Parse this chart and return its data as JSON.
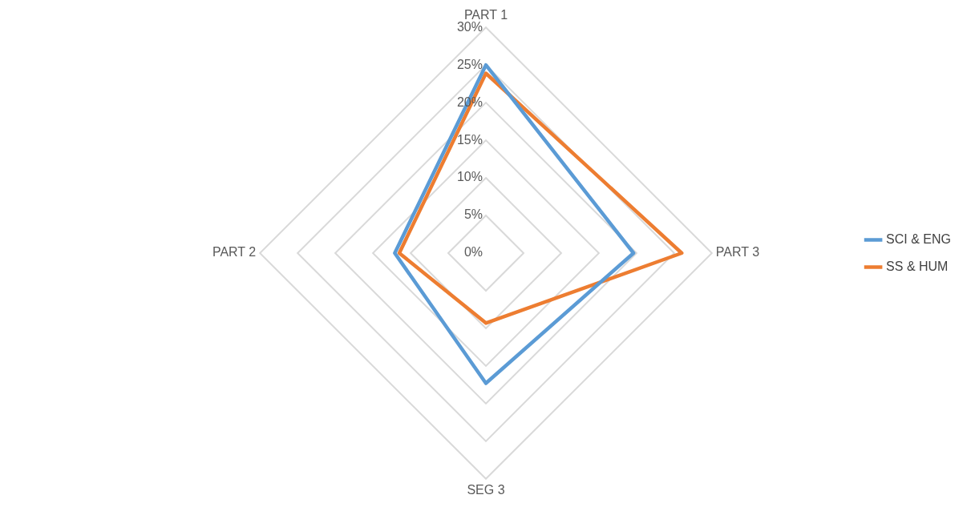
{
  "chart_data": {
    "type": "radar",
    "categories": [
      "PART 1",
      "PART 3",
      "SEG 3",
      "PART 2"
    ],
    "series": [
      {
        "name": "SCI & ENG",
        "color": "#5b9bd5",
        "values": [
          25,
          19.6,
          17.3,
          12.1
        ]
      },
      {
        "name": "SS & HUM",
        "color": "#ed7d31",
        "values": [
          23.9,
          26,
          9.3,
          11.5
        ]
      }
    ],
    "ylim": [
      0,
      30
    ],
    "yticks": [
      {
        "value": 0,
        "label": "0%"
      },
      {
        "value": 5,
        "label": "5%"
      },
      {
        "value": 10,
        "label": "10%"
      },
      {
        "value": 15,
        "label": "15%"
      },
      {
        "value": 20,
        "label": "20%"
      },
      {
        "value": 25,
        "label": "25%"
      },
      {
        "value": 30,
        "label": "30%"
      }
    ],
    "grid": true,
    "legend": "right",
    "marker": "none",
    "line_style": "solid"
  }
}
